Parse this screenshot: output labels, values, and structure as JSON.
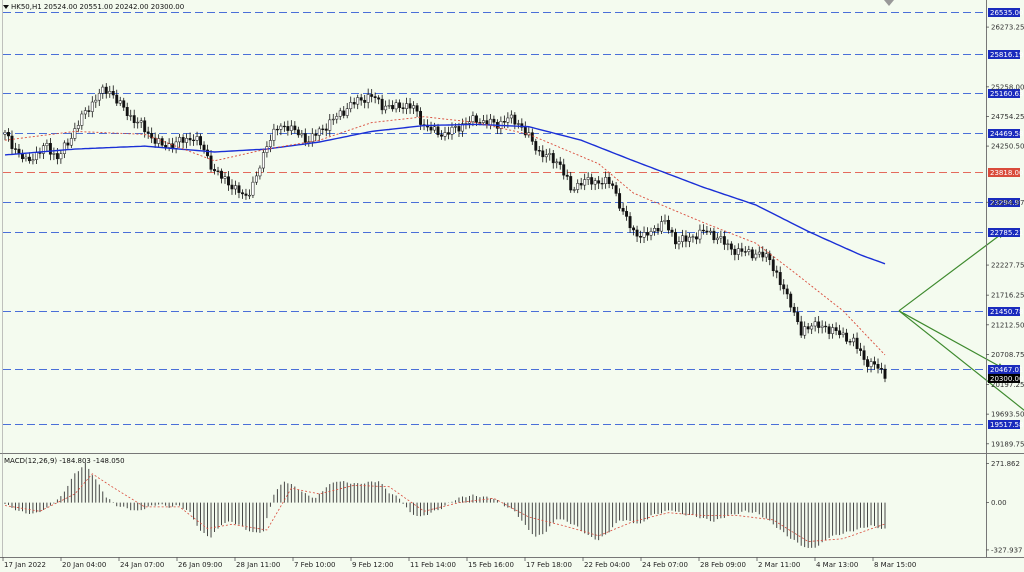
{
  "header": {
    "symbol_line": "HK50,H1  20524.00 20551.00 20242.00 20300.00",
    "macd_line": "MACD(12,26,9) -184.803 -148.050"
  },
  "colors": {
    "background": "#f4fbef",
    "grid_dash": "#4a6fd8",
    "red_level": "#e46a5c",
    "ma_blue": "#1a2fd6",
    "ma_red": "#d94a3a",
    "candle": "#111111",
    "arrow": "#3e8a2e",
    "price_box": "#000000",
    "level_box": "#1a2bbd",
    "red_box": "#d94b3b"
  },
  "price_axis": {
    "max": 26700,
    "min": 19050,
    "ticks": [
      "26273.25",
      "25258.00",
      "24754.25",
      "24250.50",
      "23294.97",
      "22227.75",
      "21716.25",
      "21212.50",
      "20708.75",
      "20197.25",
      "19693.50",
      "19189.75"
    ]
  },
  "levels": [
    {
      "value": "26535.00",
      "color": "blue"
    },
    {
      "value": "25816.19",
      "color": "blue"
    },
    {
      "value": "25160.63",
      "color": "blue"
    },
    {
      "value": "24469.58",
      "color": "blue"
    },
    {
      "value": "23818.00",
      "color": "red"
    },
    {
      "value": "23294.97",
      "color": "blue"
    },
    {
      "value": "22785.21",
      "color": "blue"
    },
    {
      "value": "21450.78",
      "color": "blue"
    },
    {
      "value": "20467.01",
      "color": "blue"
    },
    {
      "value": "19517.58",
      "color": "blue"
    }
  ],
  "current_price": "20300.00",
  "macd_axis": {
    "max": 330,
    "min": -370,
    "ticks": [
      "271.862",
      "0.00",
      "-327.937"
    ]
  },
  "time_labels": [
    "17 Jan 2022",
    "20 Jan 04:00",
    "24 Jan 07:00",
    "26 Jan 09:00",
    "28 Jan 11:00",
    "7 Feb 10:00",
    "9 Feb 12:00",
    "11 Feb 14:00",
    "15 Feb 16:00",
    "17 Feb 18:00",
    "22 Feb 04:00",
    "24 Feb 07:00",
    "28 Feb 09:00",
    "2 Mar 11:00",
    "4 Mar 13:00",
    "8 Mar 15:00"
  ],
  "chart_data": {
    "type": "candlestick",
    "symbol": "HK50",
    "timeframe": "H1",
    "ohlc_last": {
      "open": 20524.0,
      "high": 20551.0,
      "low": 20242.0,
      "close": 20300.0
    },
    "price_path": [
      [
        0,
        24450
      ],
      [
        3,
        24200
      ],
      [
        6,
        23980
      ],
      [
        9,
        24120
      ],
      [
        12,
        24250
      ],
      [
        15,
        24050
      ],
      [
        18,
        24300
      ],
      [
        21,
        24650
      ],
      [
        24,
        24900
      ],
      [
        27,
        25150
      ],
      [
        30,
        25200
      ],
      [
        33,
        24950
      ],
      [
        36,
        24750
      ],
      [
        39,
        24600
      ],
      [
        42,
        24400
      ],
      [
        45,
        24250
      ],
      [
        48,
        24280
      ],
      [
        51,
        24350
      ],
      [
        54,
        24400
      ],
      [
        57,
        24200
      ],
      [
        60,
        23800
      ],
      [
        63,
        23700
      ],
      [
        66,
        23500
      ],
      [
        69,
        23400
      ],
      [
        72,
        23700
      ],
      [
        75,
        24300
      ],
      [
        78,
        24550
      ],
      [
        81,
        24600
      ],
      [
        84,
        24450
      ],
      [
        87,
        24350
      ],
      [
        90,
        24500
      ],
      [
        93,
        24650
      ],
      [
        96,
        24800
      ],
      [
        99,
        24950
      ],
      [
        102,
        25050
      ],
      [
        105,
        25100
      ],
      [
        108,
        24950
      ],
      [
        111,
        24900
      ],
      [
        114,
        24950
      ],
      [
        117,
        24900
      ],
      [
        120,
        24600
      ],
      [
        123,
        24500
      ],
      [
        126,
        24450
      ],
      [
        129,
        24550
      ],
      [
        132,
        24650
      ],
      [
        135,
        24700
      ],
      [
        138,
        24650
      ],
      [
        141,
        24620
      ],
      [
        144,
        24720
      ],
      [
        147,
        24650
      ],
      [
        150,
        24400
      ],
      [
        153,
        24150
      ],
      [
        156,
        24050
      ],
      [
        159,
        23950
      ],
      [
        162,
        23500
      ],
      [
        165,
        23650
      ],
      [
        168,
        23650
      ],
      [
        171,
        23650
      ],
      [
        174,
        23600
      ],
      [
        177,
        23100
      ],
      [
        180,
        22800
      ],
      [
        183,
        22700
      ],
      [
        186,
        22850
      ],
      [
        189,
        22950
      ],
      [
        192,
        22650
      ],
      [
        195,
        22650
      ],
      [
        198,
        22750
      ],
      [
        201,
        22800
      ],
      [
        204,
        22700
      ],
      [
        207,
        22550
      ],
      [
        210,
        22450
      ],
      [
        213,
        22450
      ],
      [
        216,
        22400
      ],
      [
        219,
        22350
      ],
      [
        222,
        21900
      ],
      [
        225,
        21600
      ],
      [
        228,
        21050
      ],
      [
        231,
        21250
      ],
      [
        234,
        21150
      ],
      [
        237,
        21150
      ],
      [
        240,
        21000
      ],
      [
        243,
        20950
      ],
      [
        246,
        20600
      ],
      [
        249,
        20550
      ],
      [
        252,
        20300
      ]
    ],
    "ema_fast_path": [
      [
        0,
        24350
      ],
      [
        20,
        24500
      ],
      [
        40,
        24450
      ],
      [
        60,
        24000
      ],
      [
        75,
        24200
      ],
      [
        90,
        24350
      ],
      [
        105,
        24650
      ],
      [
        120,
        24750
      ],
      [
        135,
        24650
      ],
      [
        150,
        24450
      ],
      [
        160,
        24200
      ],
      [
        170,
        23950
      ],
      [
        180,
        23450
      ],
      [
        200,
        22950
      ],
      [
        215,
        22600
      ],
      [
        225,
        22150
      ],
      [
        240,
        21450
      ],
      [
        252,
        20700
      ]
    ],
    "ema_slow_path": [
      [
        0,
        24100
      ],
      [
        20,
        24200
      ],
      [
        40,
        24250
      ],
      [
        60,
        24150
      ],
      [
        75,
        24200
      ],
      [
        90,
        24320
      ],
      [
        105,
        24500
      ],
      [
        120,
        24600
      ],
      [
        135,
        24620
      ],
      [
        150,
        24580
      ],
      [
        165,
        24350
      ],
      [
        180,
        24000
      ],
      [
        200,
        23550
      ],
      [
        215,
        23250
      ],
      [
        230,
        22800
      ],
      [
        245,
        22400
      ],
      [
        252,
        22250
      ]
    ],
    "macd_path": [
      [
        0,
        -10
      ],
      [
        4,
        -60
      ],
      [
        8,
        -80
      ],
      [
        12,
        -40
      ],
      [
        16,
        40
      ],
      [
        20,
        200
      ],
      [
        23,
        270
      ],
      [
        26,
        160
      ],
      [
        29,
        40
      ],
      [
        32,
        -20
      ],
      [
        35,
        -40
      ],
      [
        38,
        -60
      ],
      [
        41,
        -30
      ],
      [
        44,
        -10
      ],
      [
        47,
        -30
      ],
      [
        50,
        -20
      ],
      [
        53,
        -70
      ],
      [
        56,
        -200
      ],
      [
        59,
        -240
      ],
      [
        62,
        -150
      ],
      [
        65,
        -130
      ],
      [
        68,
        -170
      ],
      [
        71,
        -210
      ],
      [
        74,
        -200
      ],
      [
        77,
        60
      ],
      [
        80,
        150
      ],
      [
        83,
        110
      ],
      [
        86,
        60
      ],
      [
        89,
        30
      ],
      [
        92,
        110
      ],
      [
        95,
        150
      ],
      [
        98,
        140
      ],
      [
        101,
        130
      ],
      [
        104,
        140
      ],
      [
        107,
        150
      ],
      [
        110,
        70
      ],
      [
        113,
        30
      ],
      [
        116,
        -70
      ],
      [
        119,
        -100
      ],
      [
        122,
        -70
      ],
      [
        125,
        -40
      ],
      [
        128,
        10
      ],
      [
        131,
        40
      ],
      [
        134,
        50
      ],
      [
        137,
        40
      ],
      [
        140,
        30
      ],
      [
        143,
        -20
      ],
      [
        146,
        -60
      ],
      [
        149,
        -160
      ],
      [
        152,
        -240
      ],
      [
        155,
        -200
      ],
      [
        158,
        -110
      ],
      [
        161,
        -130
      ],
      [
        164,
        -170
      ],
      [
        167,
        -230
      ],
      [
        170,
        -260
      ],
      [
        173,
        -200
      ],
      [
        176,
        -120
      ],
      [
        179,
        -130
      ],
      [
        182,
        -150
      ],
      [
        185,
        -90
      ],
      [
        188,
        -70
      ],
      [
        191,
        -50
      ],
      [
        194,
        -80
      ],
      [
        197,
        -90
      ],
      [
        200,
        -110
      ],
      [
        203,
        -130
      ],
      [
        206,
        -100
      ],
      [
        209,
        -80
      ],
      [
        212,
        -60
      ],
      [
        215,
        -70
      ],
      [
        218,
        -110
      ],
      [
        221,
        -170
      ],
      [
        224,
        -230
      ],
      [
        227,
        -280
      ],
      [
        230,
        -320
      ],
      [
        233,
        -300
      ],
      [
        236,
        -240
      ],
      [
        239,
        -220
      ],
      [
        242,
        -200
      ],
      [
        245,
        -180
      ],
      [
        248,
        -160
      ],
      [
        252,
        -185
      ]
    ],
    "macd_signal_path": [
      [
        0,
        -20
      ],
      [
        10,
        -60
      ],
      [
        20,
        60
      ],
      [
        25,
        200
      ],
      [
        30,
        120
      ],
      [
        40,
        -30
      ],
      [
        50,
        -30
      ],
      [
        58,
        -180
      ],
      [
        65,
        -150
      ],
      [
        75,
        -190
      ],
      [
        82,
        100
      ],
      [
        90,
        60
      ],
      [
        100,
        120
      ],
      [
        110,
        110
      ],
      [
        120,
        -60
      ],
      [
        130,
        0
      ],
      [
        140,
        30
      ],
      [
        150,
        -100
      ],
      [
        160,
        -160
      ],
      [
        170,
        -230
      ],
      [
        180,
        -130
      ],
      [
        190,
        -70
      ],
      [
        200,
        -90
      ],
      [
        210,
        -90
      ],
      [
        220,
        -120
      ],
      [
        230,
        -270
      ],
      [
        240,
        -250
      ],
      [
        252,
        -148
      ]
    ],
    "projection": {
      "start": {
        "i": 256,
        "y": 21450
      },
      "up_target": 22785.21,
      "down_target_1": 20467.01,
      "down_target_2": 19517.58
    }
  }
}
